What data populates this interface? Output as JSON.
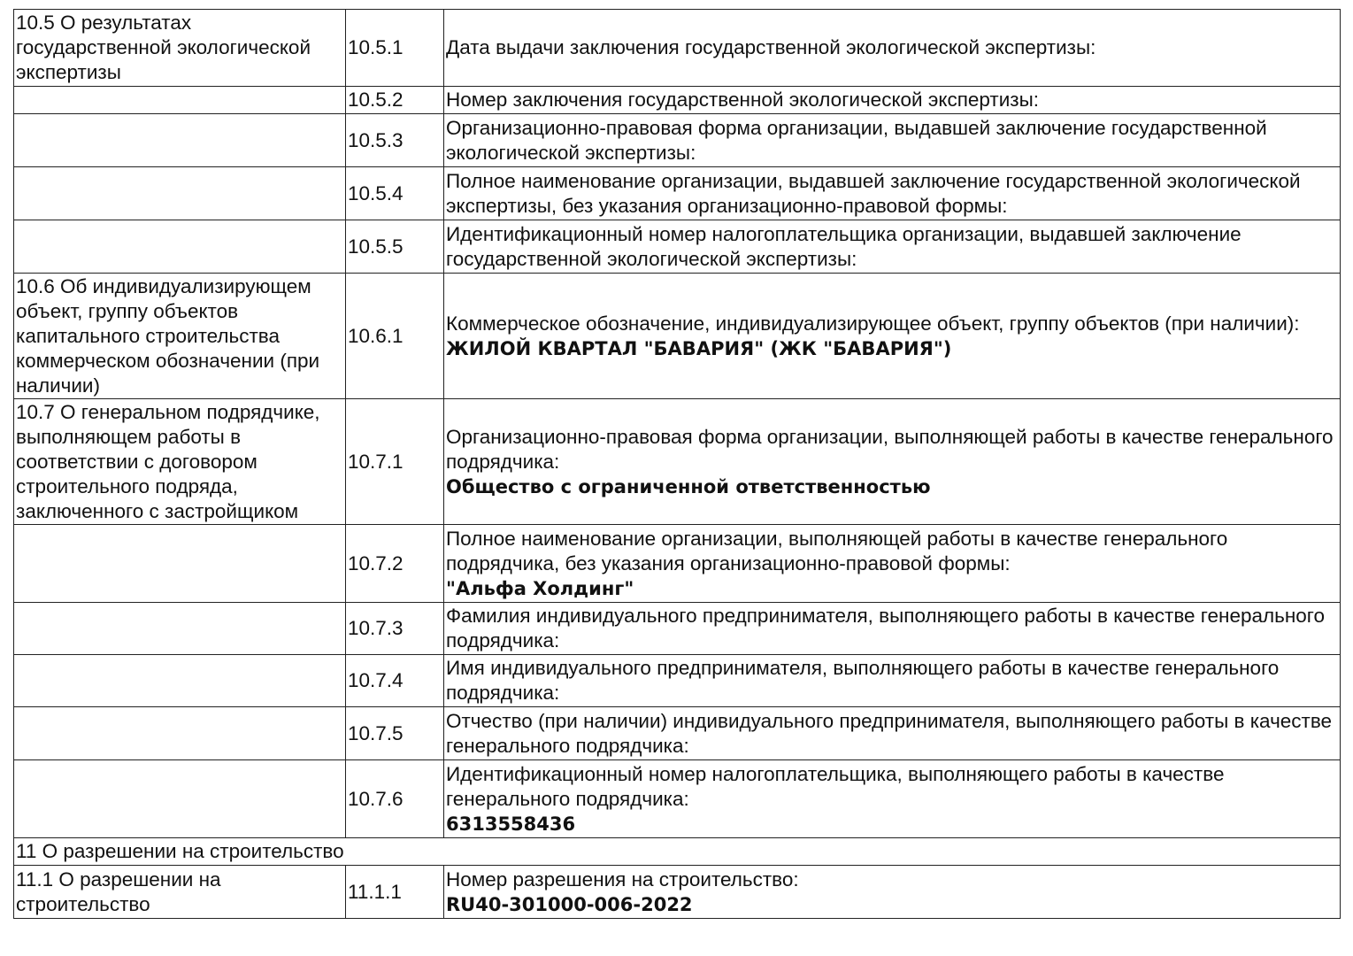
{
  "rows": [
    {
      "section": "10.5 О результатах государственной экологической экспертизы",
      "code": "10.5.1",
      "label": "Дата выдачи заключения государственной экологической экспертизы:",
      "value": ""
    },
    {
      "section": "",
      "code": "10.5.2",
      "label": "Номер заключения государственной экологической экспертизы:",
      "value": ""
    },
    {
      "section": "",
      "code": "10.5.3",
      "label": "Организационно-правовая форма организации, выдавшей заключение государственной экологической экспертизы:",
      "value": ""
    },
    {
      "section": "",
      "code": "10.5.4",
      "label": "Полное наименование организации, выдавшей заключение государственной экологической экспертизы, без указания организационно-правовой формы:",
      "value": ""
    },
    {
      "section": "",
      "code": "10.5.5",
      "label": "Идентификационный номер налогоплательщика организации, выдавшей заключение государственной экологической экспертизы:",
      "value": ""
    },
    {
      "section": "10.6 Об индивидуализирующем объект, группу объектов капитального строительства коммерческом обозначении (при наличии)",
      "code": "10.6.1",
      "label": "Коммерческое обозначение, индивидуализирующее объект, группу объектов (при наличии):",
      "value": "ЖИЛОЙ КВАРТАЛ \"БАВАРИЯ\" (ЖК \"БАВАРИЯ\")"
    },
    {
      "section": "10.7 О генеральном подрядчике, выполняющем работы в соответствии с договором строительного подряда, заключенного с застройщиком",
      "code": "10.7.1",
      "label": "Организационно-правовая форма организации, выполняющей работы в качестве генерального подрядчика:",
      "value": "Общество с ограниченной ответственностью"
    },
    {
      "section": "",
      "code": "10.7.2",
      "label": "Полное наименование организации, выполняющей работы в качестве генерального подрядчика, без указания организационно-правовой формы:",
      "value": "\"Альфа Холдинг\""
    },
    {
      "section": "",
      "code": "10.7.3",
      "label": "Фамилия индивидуального предпринимателя, выполняющего работы в качестве генерального подрядчика:",
      "value": ""
    },
    {
      "section": "",
      "code": "10.7.4",
      "label": "Имя индивидуального предпринимателя, выполняющего работы в качестве генерального подрядчика:",
      "value": ""
    },
    {
      "section": "",
      "code": "10.7.5",
      "label": "Отчество (при наличии) индивидуального предпринимателя, выполняющего работы в качестве генерального подрядчика:",
      "value": ""
    },
    {
      "section": "",
      "code": "10.7.6",
      "label": "Идентификационный номер налогоплательщика, выполняющего работы в качестве генерального подрядчика:",
      "value": "6313558436"
    }
  ],
  "section11": {
    "heading": "11 О разрешении на строительство",
    "section": "11.1 О разрешении на строительство",
    "code": "11.1.1",
    "label": "Номер разрешения на строительство:",
    "value": "RU40-301000-006-2022"
  }
}
